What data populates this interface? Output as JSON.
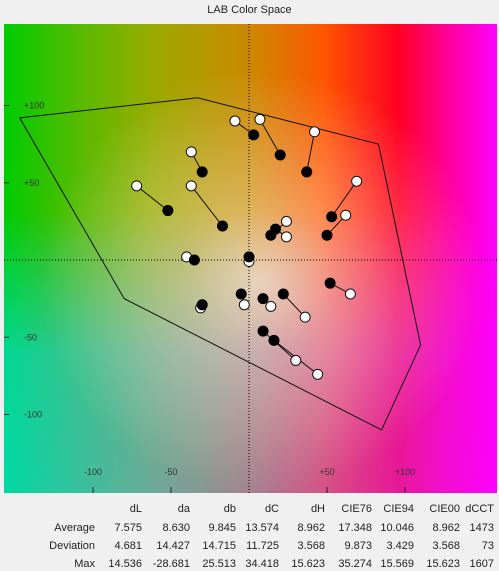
{
  "chart_data": {
    "type": "scatter",
    "title": "LAB Color Space",
    "xlim": [
      -150,
      150
    ],
    "ylim": [
      -140,
      150
    ],
    "x_ticks": [
      -100,
      -50,
      50,
      100
    ],
    "y_ticks": [
      100,
      50,
      -50,
      -100
    ],
    "x_tick_labels": [
      "-100",
      "-50",
      "+50",
      "+100"
    ],
    "y_tick_labels": [
      "+100",
      "+50",
      "-50",
      "-100"
    ],
    "gamut": [
      [
        -147,
        92
      ],
      [
        -33,
        105
      ],
      [
        83,
        75
      ],
      [
        110,
        -55
      ],
      [
        85,
        -110
      ],
      [
        -80,
        -25
      ],
      [
        -147,
        92
      ]
    ],
    "pairs": [
      {
        "measured": [
          -52,
          32
        ],
        "reference": [
          -72,
          48
        ]
      },
      {
        "measured": [
          -30,
          57
        ],
        "reference": [
          -37,
          70
        ]
      },
      {
        "measured": [
          -17,
          22
        ],
        "reference": [
          -37,
          48
        ]
      },
      {
        "measured": [
          3,
          81
        ],
        "reference": [
          -9,
          90
        ]
      },
      {
        "measured": [
          20,
          68
        ],
        "reference": [
          7,
          91
        ]
      },
      {
        "measured": [
          37,
          57
        ],
        "reference": [
          42,
          83
        ]
      },
      {
        "measured": [
          53,
          28
        ],
        "reference": [
          69,
          51
        ]
      },
      {
        "measured": [
          50,
          16
        ],
        "reference": [
          62,
          29
        ]
      },
      {
        "measured": [
          14,
          16
        ],
        "reference": [
          24,
          25
        ]
      },
      {
        "measured": [
          17,
          20
        ],
        "reference": [
          24,
          15
        ]
      },
      {
        "measured": [
          -35,
          0
        ],
        "reference": [
          -40,
          2
        ]
      },
      {
        "measured": [
          0,
          2
        ],
        "reference": [
          0,
          -1
        ]
      },
      {
        "measured": [
          52,
          -15
        ],
        "reference": [
          65,
          -22
        ]
      },
      {
        "measured": [
          -5,
          -22
        ],
        "reference": [
          -3,
          -29
        ]
      },
      {
        "measured": [
          -30,
          -29
        ],
        "reference": [
          -31,
          -31
        ]
      },
      {
        "measured": [
          9,
          -25
        ],
        "reference": [
          14,
          -30
        ]
      },
      {
        "measured": [
          22,
          -22
        ],
        "reference": [
          36,
          -37
        ]
      },
      {
        "measured": [
          9,
          -46
        ],
        "reference": [
          30,
          -65
        ]
      },
      {
        "measured": [
          16,
          -52
        ],
        "reference": [
          44,
          -74
        ]
      }
    ]
  },
  "stats": {
    "headers": [
      "dL",
      "da",
      "db",
      "dC",
      "dH",
      "CIE76",
      "CIE94",
      "CIE00",
      "dCCT"
    ],
    "rows": [
      {
        "label": "Average",
        "values": [
          "7.575",
          "8.630",
          "9.845",
          "13.574",
          "8.962",
          "17.348",
          "10.046",
          "8.962",
          "1473"
        ]
      },
      {
        "label": "Deviation",
        "values": [
          "4.681",
          "14.427",
          "14.715",
          "11.725",
          "3.568",
          "9.873",
          "3.429",
          "3.568",
          "73"
        ]
      },
      {
        "label": "Max",
        "values": [
          "14.536",
          "-28.681",
          "25.513",
          "34.418",
          "15.623",
          "35.274",
          "15.569",
          "15.623",
          "1607"
        ]
      }
    ]
  }
}
